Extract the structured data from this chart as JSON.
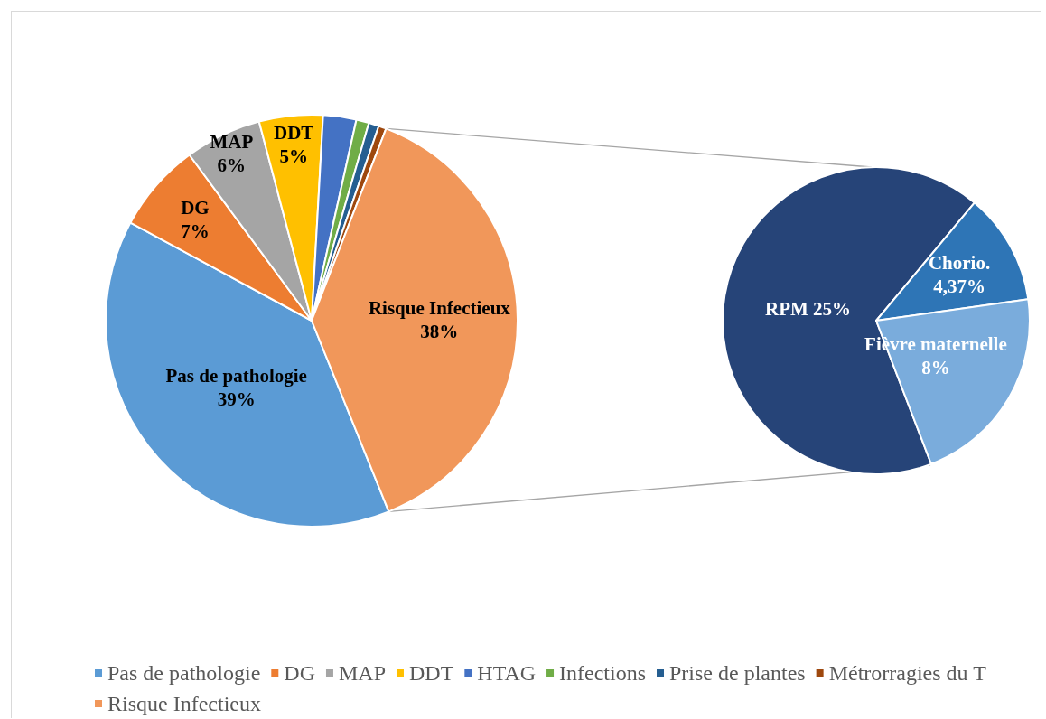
{
  "chart_data": [
    {
      "type": "pie",
      "categories": [
        "Pas de pathologie",
        "DG",
        "MAP",
        "DDT",
        "HTAG",
        "Infections",
        "Prise de plantes",
        "Métrorragies du T",
        "Risque Infectieux"
      ],
      "values": [
        39,
        7,
        6,
        5,
        2.6,
        1,
        0.8,
        0.6,
        38
      ],
      "colors": [
        "#5b9bd5",
        "#ed7d31",
        "#a5a5a5",
        "#ffc000",
        "#4472c4",
        "#70ad47",
        "#255e91",
        "#9e480e",
        "#f1975a"
      ],
      "value_labels": [
        "39%",
        "7%",
        "6%",
        "5%",
        null,
        null,
        null,
        null,
        "38%"
      ],
      "legend": "bottom"
    },
    {
      "type": "pie",
      "categories": [
        "RPM",
        "Chorio.",
        "Fièvre maternelle"
      ],
      "values": [
        25,
        4.37,
        8
      ],
      "colors": [
        "#264478",
        "#2e75b6",
        "#7aacdc"
      ],
      "value_labels": [
        "25%",
        "4,37%",
        "8%"
      ],
      "legend": false
    }
  ]
}
